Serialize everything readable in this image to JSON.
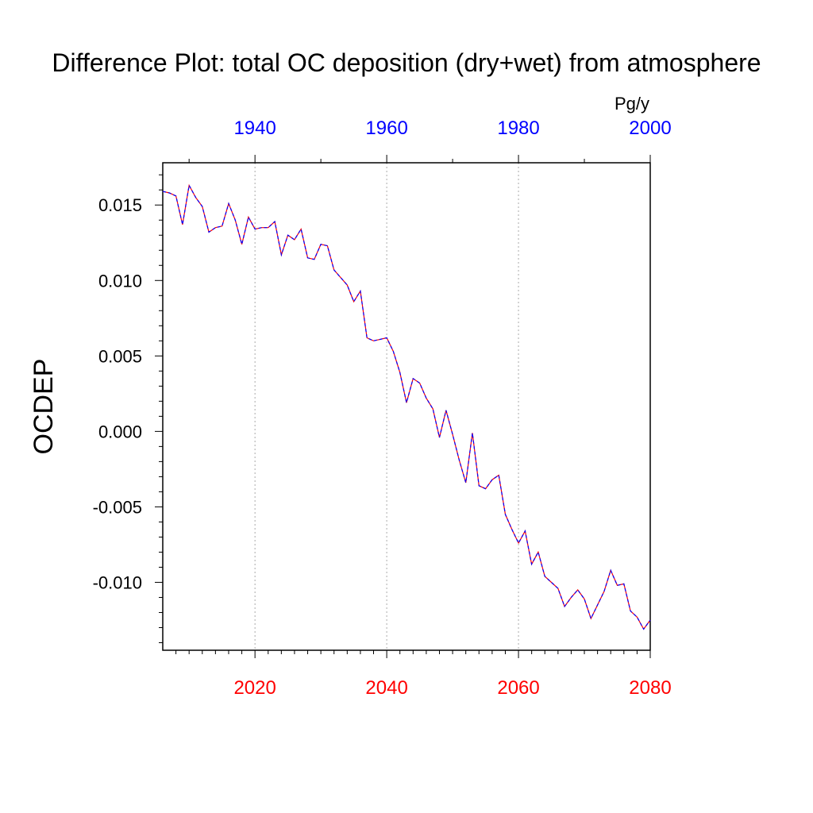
{
  "chart_data": {
    "type": "line",
    "title": "Difference Plot: total OC deposition (dry+wet) from atmosphere",
    "ylabel": "OCDEP",
    "units": "Pg/y",
    "xlim": [
      2006,
      2080
    ],
    "ylim": [
      -0.0145,
      0.0178
    ],
    "top_xlim": [
      1926,
      2000
    ],
    "bottom_ticks": [
      "2020",
      "2040",
      "2060",
      "2080"
    ],
    "top_ticks": [
      "1940",
      "1960",
      "1980",
      "2000"
    ],
    "y_ticks": [
      "0.015",
      "0.010",
      "0.005",
      "0.000",
      "-0.005",
      "-0.010"
    ],
    "grid": "vertical dotted",
    "colors": {
      "bottom_axis": "#ff0000",
      "top_axis": "#0000ff",
      "line_a": "#ff0000",
      "line_b": "#0000ff",
      "grid": "#aaaaaa"
    },
    "series": [
      {
        "name": "OCDEP difference",
        "x": [
          2006,
          2007,
          2008,
          2009,
          2010,
          2011,
          2012,
          2013,
          2014,
          2015,
          2016,
          2017,
          2018,
          2019,
          2020,
          2021,
          2022,
          2023,
          2024,
          2025,
          2026,
          2027,
          2028,
          2029,
          2030,
          2031,
          2032,
          2033,
          2034,
          2035,
          2036,
          2037,
          2038,
          2039,
          2040,
          2041,
          2042,
          2043,
          2044,
          2045,
          2046,
          2047,
          2048,
          2049,
          2050,
          2051,
          2052,
          2053,
          2054,
          2055,
          2056,
          2057,
          2058,
          2059,
          2060,
          2061,
          2062,
          2063,
          2064,
          2065,
          2066,
          2067,
          2068,
          2069,
          2070,
          2071,
          2072,
          2073,
          2074,
          2075,
          2076,
          2077,
          2078,
          2079,
          2080
        ],
        "y": [
          0.0159,
          0.0158,
          0.0156,
          0.0137,
          0.0163,
          0.0155,
          0.0149,
          0.0132,
          0.0135,
          0.0136,
          0.0151,
          0.014,
          0.0124,
          0.0142,
          0.0134,
          0.0135,
          0.0135,
          0.0139,
          0.0117,
          0.013,
          0.0127,
          0.0134,
          0.0115,
          0.0114,
          0.0124,
          0.0123,
          0.0107,
          0.0102,
          0.0097,
          0.0086,
          0.0093,
          0.0062,
          0.006,
          0.0061,
          0.0062,
          0.0053,
          0.0039,
          0.0019,
          0.0035,
          0.0032,
          0.0022,
          0.0015,
          -0.0004,
          0.0014,
          -0.0002,
          -0.0019,
          -0.0034,
          -0.0001,
          -0.0036,
          -0.0038,
          -0.0032,
          -0.0029,
          -0.0055,
          -0.0065,
          -0.0074,
          -0.0066,
          -0.0088,
          -0.008,
          -0.0096,
          -0.01,
          -0.0104,
          -0.0116,
          -0.011,
          -0.0105,
          -0.0111,
          -0.0124,
          -0.0115,
          -0.0106,
          -0.0092,
          -0.0102,
          -0.0101,
          -0.0119,
          -0.0123,
          -0.0131,
          -0.0125
        ]
      }
    ]
  }
}
